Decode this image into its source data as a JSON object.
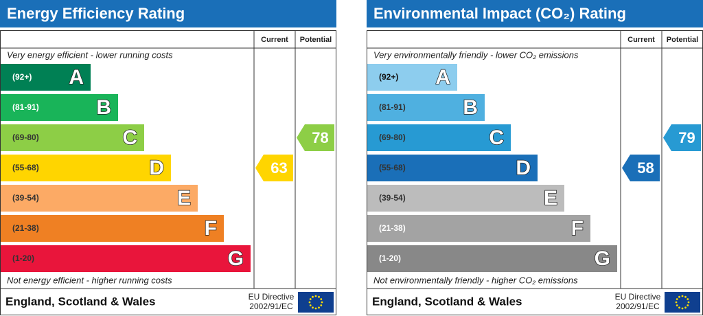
{
  "panels": [
    {
      "title": "Energy Efficiency Rating",
      "columns": [
        "Current",
        "Potential"
      ],
      "top_note": "Very energy efficient - lower running costs",
      "bottom_note": "Not energy efficient - higher running costs",
      "bands": [
        {
          "range": "(92+)",
          "letter": "A",
          "color": "#008054",
          "text_color": "#ffffff"
        },
        {
          "range": "(81-91)",
          "letter": "B",
          "color": "#19b459",
          "text_color": "#ffffff"
        },
        {
          "range": "(69-80)",
          "letter": "C",
          "color": "#8dce46",
          "text_color": "#333333"
        },
        {
          "range": "(55-68)",
          "letter": "D",
          "color": "#ffd500",
          "text_color": "#333333"
        },
        {
          "range": "(39-54)",
          "letter": "E",
          "color": "#fcaa65",
          "text_color": "#333333"
        },
        {
          "range": "(21-38)",
          "letter": "F",
          "color": "#ef8023",
          "text_color": "#333333"
        },
        {
          "range": "(1-20)",
          "letter": "G",
          "color": "#e9153b",
          "text_color": "#333333"
        }
      ],
      "current": 63,
      "potential": 78,
      "footer": "England, Scotland & Wales",
      "directive": [
        "EU Directive",
        "2002/91/EC"
      ]
    },
    {
      "title": "Environmental Impact (CO₂) Rating",
      "columns": [
        "Current",
        "Potential"
      ],
      "top_note": "Very environmentally friendly - lower CO₂ emissions",
      "bottom_note": "Not environmentally friendly - higher CO₂ emissions",
      "bands": [
        {
          "range": "(92+)",
          "letter": "A",
          "color": "#8dcdee",
          "text_color": "#111111"
        },
        {
          "range": "(81-91)",
          "letter": "B",
          "color": "#4fb0e0",
          "text_color": "#333333"
        },
        {
          "range": "(69-80)",
          "letter": "C",
          "color": "#279ad3",
          "text_color": "#333333"
        },
        {
          "range": "(55-68)",
          "letter": "D",
          "color": "#1a6fb8",
          "text_color": "#333333"
        },
        {
          "range": "(39-54)",
          "letter": "E",
          "color": "#bcbcbc",
          "text_color": "#333333"
        },
        {
          "range": "(21-38)",
          "letter": "F",
          "color": "#a3a3a3",
          "text_color": "#ffffff"
        },
        {
          "range": "(1-20)",
          "letter": "G",
          "color": "#888888",
          "text_color": "#ffffff"
        }
      ],
      "current": 58,
      "potential": 79,
      "footer": "England, Scotland & Wales",
      "directive": [
        "EU Directive",
        "2002/91/EC"
      ]
    }
  ]
}
